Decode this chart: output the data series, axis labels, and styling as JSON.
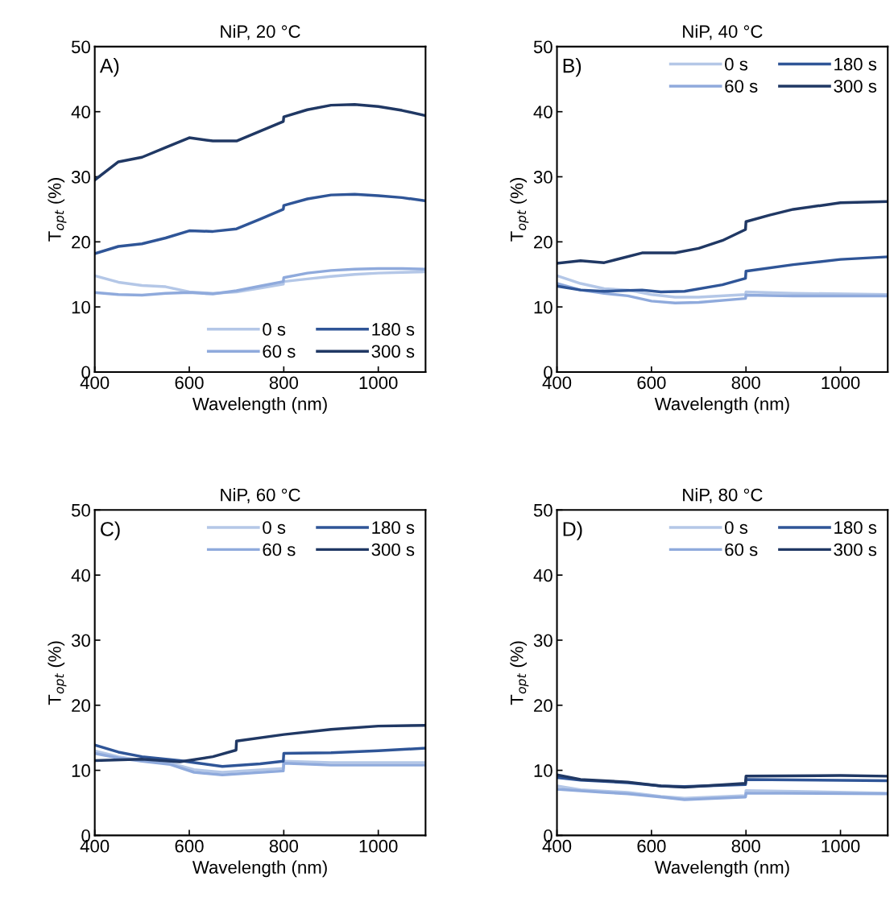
{
  "chart_data": [
    {
      "type": "line",
      "title": "NiP, 20 °C",
      "xlabel": "Wavelength (nm)",
      "ylabel": "T$_{opt}$ (%)",
      "annotations": [
        "A)"
      ],
      "legend": "bottom right",
      "xlim": [
        400,
        1100
      ],
      "xticks": [
        400,
        600,
        800,
        1000
      ],
      "ylim": [
        0,
        50
      ],
      "yticks": [
        0,
        10,
        20,
        30,
        40,
        50
      ],
      "grid": false,
      "line_style": "solid",
      "marker": "none",
      "series": [
        {
          "name": "0 s",
          "color": "#b4c7e7",
          "x": [
            400,
            450,
            500,
            550,
            600,
            650,
            700,
            750,
            799,
            800,
            850,
            900,
            950,
            1000,
            1050,
            1100
          ],
          "values": [
            14.8,
            13.8,
            13.3,
            13.1,
            12.3,
            12.1,
            12.3,
            12.9,
            13.5,
            13.9,
            14.3,
            14.7,
            15,
            15.2,
            15.3,
            15.4
          ]
        },
        {
          "name": "60 s",
          "color": "#8faadc",
          "x": [
            400,
            450,
            500,
            550,
            600,
            650,
            700,
            750,
            799,
            800,
            850,
            900,
            950,
            1000,
            1050,
            1100
          ],
          "values": [
            12.2,
            11.9,
            11.8,
            12.1,
            12.2,
            12.0,
            12.5,
            13.2,
            13.9,
            14.5,
            15.2,
            15.6,
            15.8,
            15.9,
            15.9,
            15.8
          ]
        },
        {
          "name": "180 s",
          "color": "#2f5597",
          "x": [
            400,
            450,
            500,
            550,
            600,
            650,
            700,
            750,
            799,
            800,
            850,
            900,
            950,
            1000,
            1050,
            1100
          ],
          "values": [
            18.2,
            19.3,
            19.7,
            20.6,
            21.7,
            21.6,
            22,
            23.5,
            25,
            25.6,
            26.6,
            27.2,
            27.3,
            27.1,
            26.8,
            26.3
          ]
        },
        {
          "name": "300 s",
          "color": "#203864",
          "x": [
            400,
            450,
            500,
            550,
            600,
            650,
            700,
            750,
            799,
            800,
            850,
            900,
            950,
            1000,
            1050,
            1100
          ],
          "values": [
            29.5,
            32.3,
            33,
            34.5,
            36,
            35.5,
            35.5,
            37,
            38.5,
            39.2,
            40.3,
            41,
            41.1,
            40.8,
            40.2,
            39.4
          ]
        }
      ]
    },
    {
      "type": "line",
      "title": "NiP, 40 °C",
      "xlabel": "Wavelength (nm)",
      "ylabel": "T$_{opt}$ (%)",
      "annotations": [
        "B)"
      ],
      "legend": "top right",
      "xlim": [
        400,
        1100
      ],
      "xticks": [
        400,
        600,
        800,
        1000
      ],
      "ylim": [
        0,
        50
      ],
      "yticks": [
        0,
        10,
        20,
        30,
        40,
        50
      ],
      "grid": false,
      "line_style": "solid",
      "marker": "none",
      "series": [
        {
          "name": "0 s",
          "color": "#b4c7e7",
          "x": [
            400,
            450,
            500,
            550,
            600,
            650,
            700,
            799,
            800,
            900,
            1100
          ],
          "values": [
            14.8,
            13.6,
            12.8,
            12.6,
            11.9,
            11.5,
            11.5,
            11.9,
            12.3,
            12.1,
            11.9
          ]
        },
        {
          "name": "60 s",
          "color": "#8faadc",
          "x": [
            400,
            450,
            500,
            550,
            600,
            650,
            700,
            799,
            800,
            900,
            1100
          ],
          "values": [
            13.6,
            12.6,
            12.1,
            11.7,
            10.9,
            10.6,
            10.7,
            11.3,
            11.8,
            11.7,
            11.7
          ]
        },
        {
          "name": "180 s",
          "color": "#2f5597",
          "x": [
            400,
            450,
            500,
            580,
            620,
            670,
            750,
            799,
            800,
            900,
            1000,
            1100
          ],
          "values": [
            13.2,
            12.6,
            12.4,
            12.6,
            12.3,
            12.4,
            13.4,
            14.4,
            15.5,
            16.5,
            17.3,
            17.7
          ]
        },
        {
          "name": "300 s",
          "color": "#203864",
          "x": [
            400,
            450,
            500,
            580,
            650,
            700,
            750,
            799,
            800,
            850,
            900,
            1000,
            1100
          ],
          "values": [
            16.7,
            17.1,
            16.8,
            18.3,
            18.3,
            19,
            20.2,
            21.9,
            23.1,
            24.1,
            25,
            26,
            26.2
          ]
        }
      ]
    },
    {
      "type": "line",
      "title": "NiP, 60 °C",
      "xlabel": "Wavelength (nm)",
      "ylabel": "T$_{opt}$ (%)",
      "annotations": [
        "C)"
      ],
      "legend": "top right",
      "xlim": [
        400,
        1100
      ],
      "xticks": [
        400,
        600,
        800,
        1000
      ],
      "ylim": [
        0,
        50
      ],
      "yticks": [
        0,
        10,
        20,
        30,
        40,
        50
      ],
      "grid": false,
      "line_style": "solid",
      "marker": "none",
      "series": [
        {
          "name": "0 s",
          "color": "#b4c7e7",
          "x": [
            400,
            450,
            500,
            560,
            610,
            670,
            799,
            800,
            900,
            1100
          ],
          "values": [
            13.0,
            12.1,
            11.5,
            11.1,
            10.1,
            9.7,
            10.3,
            11.4,
            11.2,
            11.2
          ]
        },
        {
          "name": "60 s",
          "color": "#8faadc",
          "x": [
            400,
            450,
            500,
            560,
            610,
            670,
            799,
            800,
            900,
            1100
          ],
          "values": [
            12.6,
            11.9,
            11.4,
            10.9,
            9.7,
            9.3,
            9.9,
            11.1,
            10.8,
            10.8
          ]
        },
        {
          "name": "180 s",
          "color": "#2f5597",
          "x": [
            400,
            450,
            500,
            580,
            620,
            670,
            750,
            799,
            800,
            900,
            1000,
            1100
          ],
          "values": [
            13.9,
            12.8,
            12.1,
            11.5,
            11.1,
            10.6,
            11.0,
            11.4,
            12.6,
            12.7,
            13.0,
            13.4
          ]
        },
        {
          "name": "300 s",
          "color": "#203864",
          "x": [
            400,
            500,
            580,
            650,
            699,
            700,
            800,
            900,
            1000,
            1100
          ],
          "values": [
            11.5,
            11.7,
            11.3,
            12.1,
            13.1,
            14.5,
            15.5,
            16.3,
            16.8,
            16.9
          ]
        }
      ]
    },
    {
      "type": "line",
      "title": "NiP, 80 °C",
      "xlabel": "Wavelength (nm)",
      "ylabel": "T$_{opt}$ (%)",
      "annotations": [
        "D)"
      ],
      "legend": "top right",
      "xlim": [
        400,
        1100
      ],
      "xticks": [
        400,
        600,
        800,
        1000
      ],
      "ylim": [
        0,
        50
      ],
      "yticks": [
        0,
        10,
        20,
        30,
        40,
        50
      ],
      "grid": false,
      "line_style": "solid",
      "marker": "none",
      "series": [
        {
          "name": "0 s",
          "color": "#b4c7e7",
          "x": [
            400,
            450,
            550,
            620,
            670,
            799,
            800,
            1100
          ],
          "values": [
            7.6,
            7.0,
            6.6,
            6.0,
            5.7,
            6.1,
            6.9,
            6.5
          ]
        },
        {
          "name": "60 s",
          "color": "#8faadc",
          "x": [
            400,
            500,
            550,
            620,
            670,
            799,
            800,
            1100
          ],
          "values": [
            7.1,
            6.6,
            6.4,
            5.9,
            5.5,
            5.9,
            6.5,
            6.4
          ]
        },
        {
          "name": "180 s",
          "color": "#2f5597",
          "x": [
            400,
            450,
            550,
            620,
            670,
            799,
            800,
            1100
          ],
          "values": [
            8.9,
            8.5,
            8.1,
            7.6,
            7.5,
            7.8,
            8.6,
            8.4
          ]
        },
        {
          "name": "300 s",
          "color": "#203864",
          "x": [
            400,
            450,
            550,
            620,
            670,
            799,
            800,
            1000,
            1100
          ],
          "values": [
            9.3,
            8.6,
            8.2,
            7.6,
            7.4,
            8.0,
            9.1,
            9.2,
            9.1
          ]
        }
      ]
    }
  ]
}
